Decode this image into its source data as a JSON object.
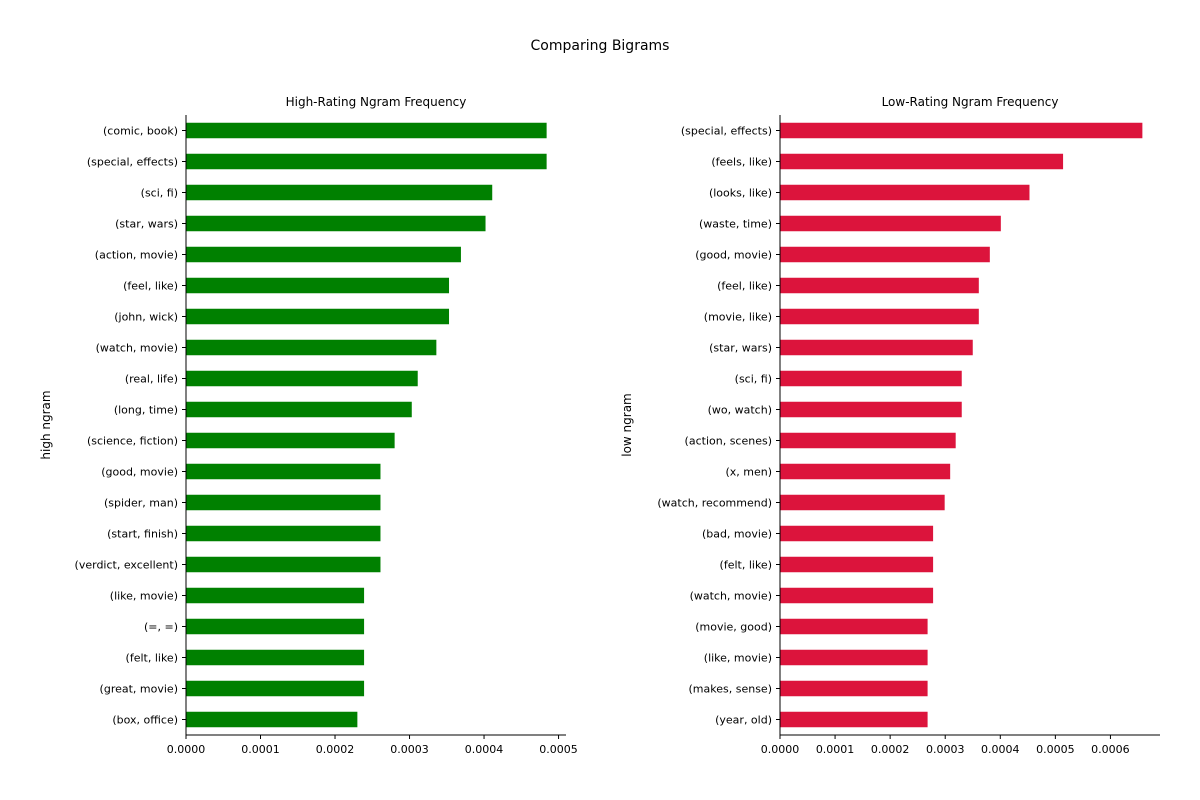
{
  "title": "Comparing Bigrams",
  "chart_data": [
    {
      "type": "bar",
      "orientation": "horizontal",
      "title": "High-Rating Ngram Frequency",
      "xlabel": "",
      "ylabel": "high ngram",
      "color": "#008000",
      "xlim": [
        0,
        0.00051
      ],
      "xticks": [
        "0.0000",
        "0.0001",
        "0.0002",
        "0.0003",
        "0.0004",
        "0.0005"
      ],
      "grid": false,
      "categories": [
        "(comic, book)",
        "(special, effects)",
        "(sci, fi)",
        "(star, wars)",
        "(action, movie)",
        "(feel, like)",
        "(john, wick)",
        "(watch, movie)",
        "(real, life)",
        "(long, time)",
        "(science, fiction)",
        "(good, movie)",
        "(spider, man)",
        "(start, finish)",
        "(verdict, excellent)",
        "(like, movie)",
        "(=, =)",
        "(felt, like)",
        "(great, movie)",
        "(box, office)"
      ],
      "values": [
        0.000484,
        0.000484,
        0.000411,
        0.000402,
        0.000369,
        0.000353,
        0.000353,
        0.000336,
        0.000311,
        0.000303,
        0.00028,
        0.000261,
        0.000261,
        0.000261,
        0.000261,
        0.000239,
        0.000239,
        0.000239,
        0.000239,
        0.00023
      ]
    },
    {
      "type": "bar",
      "orientation": "horizontal",
      "title": "Low-Rating Ngram Frequency",
      "xlabel": "",
      "ylabel": "low ngram",
      "color": "#DC143C",
      "xlim": [
        0,
        0.00069
      ],
      "xticks": [
        "0.0000",
        "0.0001",
        "0.0002",
        "0.0003",
        "0.0004",
        "0.0005",
        "0.0006"
      ],
      "grid": false,
      "categories": [
        "(special, effects)",
        "(feels, like)",
        "(looks, like)",
        "(waste, time)",
        "(good, movie)",
        "(feel, like)",
        "(movie, like)",
        "(star, wars)",
        "(sci, fi)",
        "(wo, watch)",
        "(action, scenes)",
        "(x, men)",
        "(watch, recommend)",
        "(bad, movie)",
        "(felt, like)",
        "(watch, movie)",
        "(movie, good)",
        "(like, movie)",
        "(makes, sense)",
        "(year, old)"
      ],
      "values": [
        0.000658,
        0.000514,
        0.000453,
        0.000401,
        0.000381,
        0.000361,
        0.000361,
        0.00035,
        0.00033,
        0.00033,
        0.000319,
        0.000309,
        0.000299,
        0.000278,
        0.000278,
        0.000278,
        0.000268,
        0.000268,
        0.000268,
        0.000268
      ]
    }
  ]
}
